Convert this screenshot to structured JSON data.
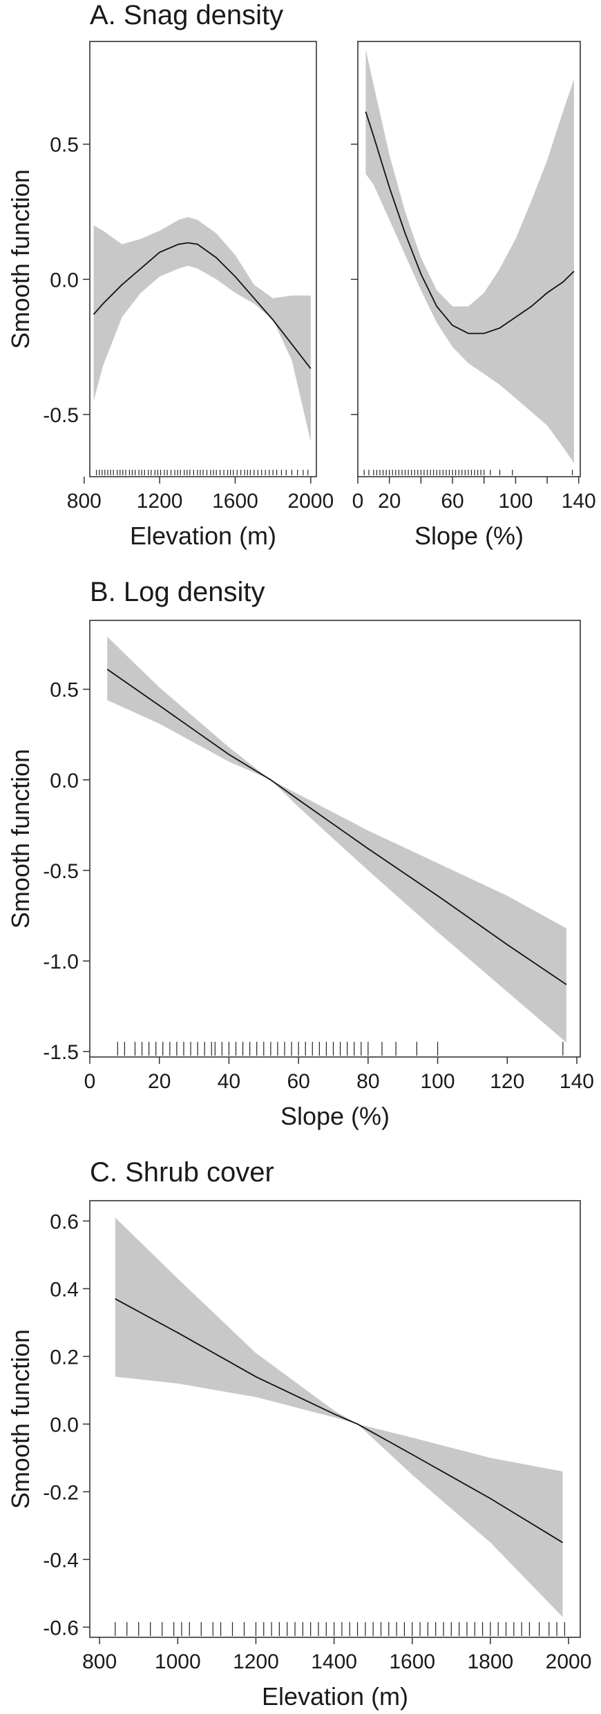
{
  "chart_data": [
    {
      "id": "A-elev",
      "type": "line",
      "title": "A. Snag density",
      "xlabel": "Elevation (m)",
      "ylabel": "Smooth function",
      "xlim": [
        830,
        2030
      ],
      "ylim": [
        -0.73,
        0.88
      ],
      "xticks": [
        800,
        1200,
        1600,
        2000
      ],
      "xticks_labeled": [
        800,
        1200,
        1600,
        2000
      ],
      "yticks": [
        -0.5,
        0.0,
        0.5
      ],
      "yticks_labeled": [
        "-0.5",
        "0.0",
        "0.5"
      ],
      "x": [
        850,
        900,
        1000,
        1100,
        1200,
        1300,
        1350,
        1400,
        1500,
        1600,
        1700,
        1800,
        1900,
        2000
      ],
      "fit": [
        -0.13,
        -0.09,
        -0.02,
        0.04,
        0.1,
        0.13,
        0.135,
        0.13,
        0.08,
        0.01,
        -0.07,
        -0.15,
        -0.24,
        -0.33
      ],
      "lower": [
        -0.45,
        -0.32,
        -0.14,
        -0.05,
        0.01,
        0.04,
        0.05,
        0.04,
        0.0,
        -0.05,
        -0.09,
        -0.15,
        -0.3,
        -0.6
      ],
      "upper": [
        0.2,
        0.18,
        0.13,
        0.15,
        0.18,
        0.22,
        0.23,
        0.22,
        0.17,
        0.09,
        -0.02,
        -0.07,
        -0.06,
        -0.06
      ],
      "rug": [
        865,
        880,
        895,
        910,
        925,
        940,
        955,
        975,
        990,
        1005,
        1020,
        1040,
        1055,
        1070,
        1090,
        1105,
        1120,
        1140,
        1155,
        1175,
        1190,
        1205,
        1225,
        1240,
        1260,
        1280,
        1295,
        1310,
        1330,
        1345,
        1360,
        1380,
        1400,
        1415,
        1430,
        1450,
        1470,
        1485,
        1500,
        1520,
        1540,
        1560,
        1575,
        1590,
        1610,
        1630,
        1650,
        1665,
        1680,
        1700,
        1720,
        1740,
        1760,
        1780,
        1800,
        1820,
        1845,
        1870,
        1900,
        1930,
        1960,
        1985
      ]
    },
    {
      "id": "A-slope",
      "type": "line",
      "title": "",
      "xlabel": "Slope (%)",
      "ylabel": "",
      "xlim": [
        0,
        141
      ],
      "ylim": [
        -0.73,
        0.88
      ],
      "xticks": [
        0,
        20,
        40,
        60,
        80,
        100,
        120,
        140
      ],
      "xticks_labeled": [
        0,
        20,
        60,
        100,
        140
      ],
      "yticks": [
        -0.5,
        0.0,
        0.5
      ],
      "yticks_labeled": [],
      "x": [
        5,
        10,
        20,
        30,
        40,
        50,
        60,
        70,
        80,
        90,
        100,
        110,
        120,
        130,
        137
      ],
      "fit": [
        0.62,
        0.53,
        0.34,
        0.17,
        0.02,
        -0.1,
        -0.17,
        -0.2,
        -0.2,
        -0.18,
        -0.14,
        -0.1,
        -0.05,
        -0.01,
        0.03
      ],
      "lower": [
        0.39,
        0.35,
        0.22,
        0.09,
        -0.04,
        -0.16,
        -0.25,
        -0.31,
        -0.35,
        -0.39,
        -0.44,
        -0.49,
        -0.54,
        -0.62,
        -0.68
      ],
      "upper": [
        0.85,
        0.72,
        0.46,
        0.25,
        0.08,
        -0.04,
        -0.1,
        -0.1,
        -0.05,
        0.04,
        0.15,
        0.29,
        0.44,
        0.62,
        0.74
      ],
      "rug": [
        4,
        7,
        10,
        12,
        14,
        16,
        18,
        20,
        22,
        24,
        26,
        28,
        30,
        32,
        34,
        36,
        38,
        40,
        42,
        44,
        46,
        48,
        50,
        52,
        54,
        56,
        58,
        60,
        62,
        64,
        66,
        68,
        70,
        72,
        74,
        76,
        78,
        80,
        84,
        90,
        98,
        136
      ]
    },
    {
      "id": "B",
      "type": "line",
      "title": "B. Log density",
      "xlabel": "Slope (%)",
      "ylabel": "Smooth function",
      "xlim": [
        0,
        141
      ],
      "ylim": [
        -1.53,
        0.88
      ],
      "xticks": [
        0,
        20,
        40,
        60,
        80,
        100,
        120,
        140
      ],
      "xticks_labeled": [
        0,
        20,
        40,
        60,
        80,
        100,
        120,
        140
      ],
      "yticks": [
        -1.5,
        -1.0,
        -0.5,
        0.0,
        0.5
      ],
      "yticks_labeled": [
        "-1.5",
        "-1.0",
        "-0.5",
        "0.0",
        "0.5"
      ],
      "x": [
        5,
        20,
        40,
        52,
        60,
        80,
        100,
        120,
        137
      ],
      "fit": [
        0.61,
        0.41,
        0.14,
        0.0,
        -0.11,
        -0.38,
        -0.64,
        -0.91,
        -1.13
      ],
      "lower": [
        0.44,
        0.31,
        0.1,
        0.0,
        -0.15,
        -0.5,
        -0.84,
        -1.17,
        -1.45
      ],
      "upper": [
        0.79,
        0.51,
        0.18,
        0.0,
        -0.08,
        -0.28,
        -0.46,
        -0.64,
        -0.82
      ],
      "rug": [
        8,
        10,
        13,
        15,
        17,
        19,
        21,
        23,
        25,
        27,
        29,
        31,
        33,
        35,
        36,
        38,
        40,
        42,
        44,
        46,
        48,
        50,
        52,
        54,
        56,
        58,
        60,
        62,
        64,
        66,
        68,
        70,
        72,
        74,
        76,
        78,
        80,
        84,
        88,
        94,
        100,
        136
      ]
    },
    {
      "id": "C",
      "type": "line",
      "title": "C. Shrub cover",
      "xlabel": "Elevation (m)",
      "ylabel": "Smooth function",
      "xlim": [
        775,
        2030
      ],
      "ylim": [
        -0.63,
        0.66
      ],
      "xticks": [
        800,
        1000,
        1200,
        1400,
        1600,
        1800,
        2000
      ],
      "xticks_labeled": [
        800,
        1000,
        1200,
        1400,
        1600,
        1800,
        2000
      ],
      "yticks": [
        -0.6,
        -0.4,
        -0.2,
        0.0,
        0.2,
        0.4,
        0.6
      ],
      "yticks_labeled": [
        "-0.6",
        "-0.4",
        "-0.2",
        "0.0",
        "0.2",
        "0.4",
        "0.6"
      ],
      "x": [
        840,
        1000,
        1200,
        1400,
        1460,
        1600,
        1800,
        1985
      ],
      "fit": [
        0.37,
        0.27,
        0.14,
        0.03,
        0.0,
        -0.09,
        -0.22,
        -0.35
      ],
      "lower": [
        0.14,
        0.12,
        0.08,
        0.02,
        0.0,
        -0.15,
        -0.35,
        -0.57
      ],
      "upper": [
        0.61,
        0.43,
        0.21,
        0.04,
        0.0,
        -0.04,
        -0.1,
        -0.14
      ],
      "rug": [
        840,
        870,
        900,
        930,
        960,
        990,
        1010,
        1030,
        1060,
        1090,
        1110,
        1140,
        1170,
        1200,
        1220,
        1240,
        1260,
        1280,
        1300,
        1320,
        1340,
        1360,
        1380,
        1400,
        1420,
        1440,
        1460,
        1480,
        1500,
        1520,
        1540,
        1560,
        1580,
        1600,
        1620,
        1640,
        1660,
        1680,
        1700,
        1720,
        1740,
        1760,
        1780,
        1800,
        1820,
        1840,
        1860,
        1880,
        1900,
        1925,
        1950,
        1970,
        1990
      ]
    }
  ]
}
